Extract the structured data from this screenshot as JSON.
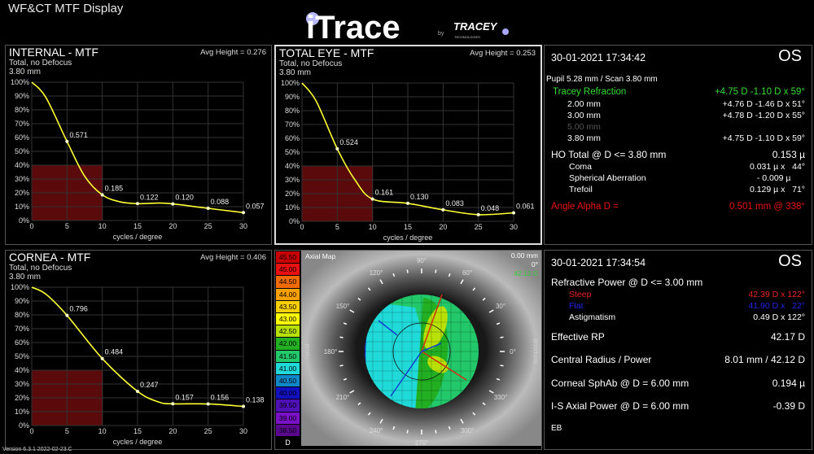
{
  "app_title": "WF&CT MTF Display",
  "logo": {
    "text": "iTrace",
    "by": "by",
    "brand": "TRACEY",
    "brand_sub": "TECHNOLOGIES"
  },
  "version": "Version 6.3.1 2022-02-23.C",
  "chart_data": [
    {
      "type": "line",
      "title": "INTERNAL - MTF",
      "subtitle1": "Total, no Defocus",
      "subtitle2": "3.80 mm",
      "avg_height": "Avg Height = 0.276",
      "xlabel": "cycles / degree",
      "xlim": [
        0,
        30
      ],
      "ylim": [
        0,
        100
      ],
      "xticks": [
        "0",
        "5",
        "10",
        "15",
        "20",
        "25",
        "30"
      ],
      "yticks": [
        "0%",
        "10%",
        "20%",
        "30%",
        "40%",
        "50%",
        "60%",
        "70%",
        "80%",
        "90%",
        "100%"
      ],
      "threshold_box": {
        "x": [
          0,
          10
        ],
        "y": [
          0,
          40
        ],
        "color": "#5a0a0a"
      },
      "line_color": "#ffff33",
      "grid": true,
      "points": [
        {
          "x": 0,
          "y": 1.0
        },
        {
          "x": 2,
          "y": 0.89
        },
        {
          "x": 5,
          "y": 0.571,
          "label": "0.571"
        },
        {
          "x": 7.5,
          "y": 0.32
        },
        {
          "x": 10,
          "y": 0.185,
          "label": "0.185"
        },
        {
          "x": 12.5,
          "y": 0.135
        },
        {
          "x": 15,
          "y": 0.122,
          "label": "0.122"
        },
        {
          "x": 18,
          "y": 0.126
        },
        {
          "x": 20,
          "y": 0.12,
          "label": "0.120"
        },
        {
          "x": 25,
          "y": 0.088,
          "label": "0.088"
        },
        {
          "x": 30,
          "y": 0.057,
          "label": "0.057"
        }
      ]
    },
    {
      "type": "line",
      "title": "TOTAL EYE - MTF",
      "subtitle1": "Total, no Defocus",
      "subtitle2": "3.80 mm",
      "avg_height": "Avg Height = 0.253",
      "xlabel": "cycles / degree",
      "xlim": [
        0,
        30
      ],
      "ylim": [
        0,
        100
      ],
      "xticks": [
        "0",
        "5",
        "10",
        "15",
        "20",
        "25",
        "30"
      ],
      "yticks": [
        "0%",
        "10%",
        "20%",
        "30%",
        "40%",
        "50%",
        "60%",
        "70%",
        "80%",
        "90%",
        "100%"
      ],
      "threshold_box": {
        "x": [
          0,
          10
        ],
        "y": [
          0,
          40
        ],
        "color": "#5a0a0a"
      },
      "line_color": "#ffff33",
      "grid": true,
      "points": [
        {
          "x": 0,
          "y": 1.0
        },
        {
          "x": 2,
          "y": 0.87
        },
        {
          "x": 5,
          "y": 0.524,
          "label": "0.524"
        },
        {
          "x": 7.5,
          "y": 0.3
        },
        {
          "x": 10,
          "y": 0.161,
          "label": "0.161"
        },
        {
          "x": 15,
          "y": 0.13,
          "label": "0.130"
        },
        {
          "x": 20,
          "y": 0.083,
          "label": "0.083"
        },
        {
          "x": 25,
          "y": 0.048,
          "label": "0.048"
        },
        {
          "x": 30,
          "y": 0.061,
          "label": "0.061"
        }
      ]
    },
    {
      "type": "line",
      "title": "CORNEA - MTF",
      "subtitle1": "Total, no Defocus",
      "subtitle2": "3.80 mm",
      "avg_height": "Avg Height = 0.406",
      "xlabel": "cycles / degree",
      "xlim": [
        0,
        30
      ],
      "ylim": [
        0,
        100
      ],
      "xticks": [
        "0",
        "5",
        "10",
        "15",
        "20",
        "25",
        "30"
      ],
      "yticks": [
        "0%",
        "10%",
        "20%",
        "30%",
        "40%",
        "50%",
        "60%",
        "70%",
        "80%",
        "90%",
        "100%"
      ],
      "threshold_box": {
        "x": [
          0,
          10
        ],
        "y": [
          0,
          40
        ],
        "color": "#5a0a0a"
      },
      "line_color": "#ffff33",
      "grid": true,
      "points": [
        {
          "x": 0,
          "y": 1.0
        },
        {
          "x": 2,
          "y": 0.95
        },
        {
          "x": 5,
          "y": 0.796,
          "label": "0.796"
        },
        {
          "x": 10,
          "y": 0.484,
          "label": "0.484"
        },
        {
          "x": 15,
          "y": 0.247,
          "label": "0.247"
        },
        {
          "x": 18,
          "y": 0.17
        },
        {
          "x": 20,
          "y": 0.157,
          "label": "0.157"
        },
        {
          "x": 25,
          "y": 0.156,
          "label": "0.156"
        },
        {
          "x": 30,
          "y": 0.138,
          "label": "0.138"
        }
      ]
    }
  ],
  "wavefront_info": {
    "datetime": "30-01-2021  17:34:42",
    "eye": "OS",
    "pupil_scan": "Pupil 5.28 mm  /  Scan 3.80 mm",
    "refraction_label": "Tracey Refraction",
    "refraction_value": "+4.75 D -1.10 D x 59°",
    "zones": [
      {
        "label": "2.00 mm",
        "value": "+4.76 D -1.46 D x 51°",
        "dim": false
      },
      {
        "label": "3.00 mm",
        "value": "+4.78 D -1.20 D x 55°",
        "dim": false
      },
      {
        "label": "5.00 mm",
        "value": "",
        "dim": true
      },
      {
        "label": "3.80 mm",
        "value": "+4.75 D -1.10 D x 59°",
        "dim": false
      }
    ],
    "ho_label": "HO Total @ D <= 3.80 mm",
    "ho_value": "0.153 µ",
    "ho_terms": [
      {
        "label": "Coma",
        "value": "0.031 µ x   44°"
      },
      {
        "label": "Spherical Aberration",
        "value": "- 0.009 µ      "
      },
      {
        "label": "Trefoil",
        "value": "0.129 µ x   71°"
      }
    ],
    "angle_alpha_label": "Angle Alpha  D =",
    "angle_alpha_value": "0.501 mm @ 338°",
    "colors": {
      "green": "#33dd33",
      "red": "#ee1111",
      "dim": "#555555"
    }
  },
  "axial_map": {
    "title": "Axial Map",
    "offset": "0.00 mm",
    "angle": "0°",
    "power": "42.12 D",
    "scale_unit": "D",
    "scale": [
      {
        "v": "45.50",
        "c": "#c80000"
      },
      {
        "v": "45.00",
        "c": "#e81010"
      },
      {
        "v": "44.50",
        "c": "#f06a00"
      },
      {
        "v": "44.00",
        "c": "#f7a000"
      },
      {
        "v": "43.50",
        "c": "#f8d000"
      },
      {
        "v": "43.00",
        "c": "#ffff00"
      },
      {
        "v": "42.50",
        "c": "#b8e000"
      },
      {
        "v": "42.00",
        "c": "#22b022"
      },
      {
        "v": "41.50",
        "c": "#22c86a"
      },
      {
        "v": "41.00",
        "c": "#20dada"
      },
      {
        "v": "40.50",
        "c": "#1088c8"
      },
      {
        "v": "40.00",
        "c": "#1010c0"
      },
      {
        "v": "39.50",
        "c": "#5010b8"
      },
      {
        "v": "39.00",
        "c": "#7a10c8"
      },
      {
        "v": "38.50",
        "c": "#5a0890"
      }
    ],
    "degree_labels": [
      "90°",
      "60°",
      "30°",
      "0°",
      "330°",
      "300°",
      "270°",
      "240°",
      "210°",
      "180°",
      "150°",
      "120°"
    ],
    "side_left": "nasal",
    "side_right": "temporal"
  },
  "corneal_info": {
    "datetime": "30-01-2021  17:34:54",
    "eye": "OS",
    "rp_label": "Refractive Power @ D <= 3.00 mm",
    "steep_label": "Steep",
    "steep_value": "42.39 D x 122°",
    "flat_label": "Flat",
    "flat_value": "41.90 D x   22°",
    "astig_label": "Astigmatism",
    "astig_value": "0.49 D x 122°",
    "erp_label": "Effective RP",
    "erp_value": "42.17 D",
    "cr_label": "Central Radius / Power",
    "cr_value": "8.01 mm / 42.12 D",
    "sa_label": "Corneal SphAb @ D = 6.00 mm",
    "sa_value": "0.194 µ",
    "is_label": "I-S Axial Power @ D = 6.00 mm",
    "is_value": "-0.39 D",
    "operator": "EB",
    "colors": {
      "steep": "#ee2222",
      "flat": "#2222ee"
    }
  }
}
